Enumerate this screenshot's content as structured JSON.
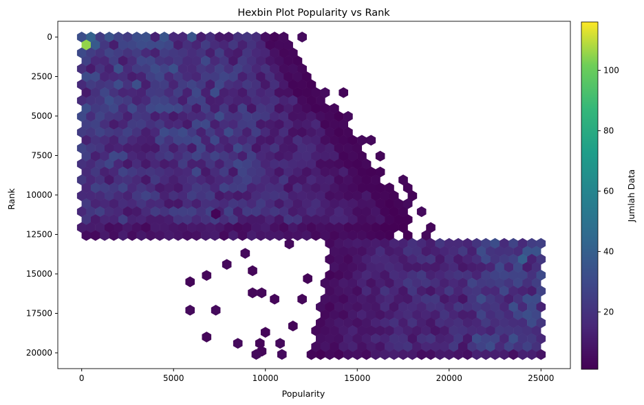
{
  "chart_data": {
    "type": "hexbin",
    "title": "Hexbin Plot Popularity vs Rank",
    "xlabel": "Popularity",
    "ylabel": "Rank",
    "xlim": [
      -1300,
      26600
    ],
    "ylim": [
      21000,
      -1000
    ],
    "y_inverted": true,
    "x_ticks": [
      0,
      5000,
      10000,
      15000,
      20000,
      25000
    ],
    "y_ticks": [
      0,
      2500,
      5000,
      7500,
      10000,
      12500,
      15000,
      17500,
      20000
    ],
    "colormap": "viridis",
    "colorbar": {
      "label": "Jumlah Data",
      "range": [
        1,
        116
      ],
      "ticks": [
        20,
        40,
        60,
        80,
        100
      ]
    },
    "gridsize_x": 50,
    "x_range": [
      0,
      25000
    ],
    "y_range": [
      0,
      20200
    ],
    "density_regions": [
      {
        "name": "upper-band",
        "rank_range": [
          0,
          12700
        ],
        "popularity_start": 0,
        "popularity_end_at_rank_0": 11000,
        "popularity_end_at_rank_12500": 18500,
        "typical_count": 12,
        "peak": {
          "popularity": 300,
          "rank": 400,
          "count": 116
        },
        "secondary_peaks": [
          {
            "popularity": 300,
            "rank": -100,
            "count": 55
          },
          {
            "popularity": 1300,
            "rank": 800,
            "count": 45
          }
        ]
      },
      {
        "name": "lower-band",
        "rank_range": [
          12700,
          20300
        ],
        "popularity_start_at_rank_13000": 13500,
        "popularity_start_at_rank_20000": 12500,
        "popularity_end": 25000,
        "typical_count": 15,
        "peaks": [
          {
            "popularity": 24500,
            "rank": 13600,
            "count": 48
          },
          {
            "popularity": 24000,
            "rank": 14000,
            "count": 42
          },
          {
            "popularity": 23500,
            "rank": 15400,
            "count": 38
          },
          {
            "popularity": 24500,
            "rank": 17600,
            "count": 40
          }
        ]
      }
    ],
    "scattered_sparse_bins": [
      [
        7300,
        11200
      ],
      [
        7900,
        14400
      ],
      [
        8900,
        13700
      ],
      [
        9300,
        14800
      ],
      [
        6800,
        15100
      ],
      [
        5900,
        15500
      ],
      [
        5900,
        17300
      ],
      [
        7300,
        17300
      ],
      [
        6800,
        19000
      ],
      [
        8500,
        19400
      ],
      [
        9300,
        16200
      ],
      [
        9800,
        16200
      ],
      [
        10000,
        18700
      ],
      [
        9700,
        19400
      ],
      [
        9800,
        19900
      ],
      [
        10800,
        19400
      ],
      [
        9500,
        20100
      ],
      [
        10900,
        20100
      ],
      [
        10500,
        16600
      ],
      [
        11500,
        18300
      ],
      [
        12300,
        15300
      ],
      [
        12000,
        16600
      ],
      [
        11300,
        13100
      ]
    ]
  }
}
